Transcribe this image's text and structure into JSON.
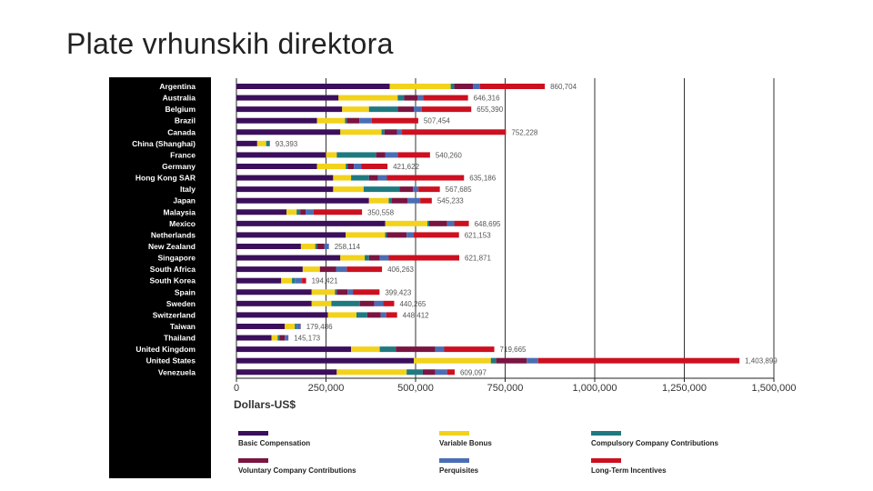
{
  "slide": {
    "title": "Plate vrhunskih direktora"
  },
  "chart_data": {
    "type": "bar",
    "stacked": true,
    "orientation": "horizontal",
    "title": "",
    "xlabel": "Dollars-US$",
    "ylabel": "",
    "xlim": [
      0,
      1500000
    ],
    "xticks": [
      0,
      250000,
      500000,
      750000,
      1000000,
      1250000,
      1500000
    ],
    "xtick_labels": [
      "0",
      "250,000",
      "500,000",
      "750,000",
      "1,000,000",
      "1,250,000",
      "1,500,000"
    ],
    "grid": true,
    "legend_position": "bottom",
    "categories": [
      "Argentina",
      "Australia",
      "Belgium",
      "Brazil",
      "Canada",
      "China (Shanghai)",
      "France",
      "Germany",
      "Hong Kong SAR",
      "Italy",
      "Japan",
      "Malaysia",
      "Mexico",
      "Netherlands",
      "New Zealand",
      "Singapore",
      "South Africa",
      "South Korea",
      "Spain",
      "Sweden",
      "Switzerland",
      "Taiwan",
      "Thailand",
      "United Kingdom",
      "United States",
      "Venezuela"
    ],
    "totals": [
      860704,
      646316,
      655390,
      507454,
      752228,
      93393,
      540260,
      421622,
      635186,
      567685,
      545233,
      350558,
      648695,
      621153,
      258114,
      621871,
      406263,
      194421,
      399423,
      440265,
      448412,
      179486,
      145173,
      719665,
      1403899,
      609097
    ],
    "total_labels": [
      "860,704",
      "646,316",
      "655,390",
      "507,454",
      "752,228",
      "93,393",
      "540,260",
      "421,622",
      "635,186",
      "567,685",
      "545,233",
      "350,558",
      "648,695",
      "621,153",
      "258,114",
      "621,871",
      "406,263",
      "194,421",
      "399,423",
      "440,265",
      "448,412",
      "179,486",
      "145,173",
      "719,665",
      "1,403,899",
      "609,097"
    ],
    "series": [
      {
        "name": "Basic Compensation",
        "color": "#3b0f5c",
        "values": [
          428000,
          285000,
          295000,
          225000,
          290000,
          58000,
          250000,
          225000,
          270000,
          270000,
          370000,
          140000,
          415000,
          305000,
          180000,
          290000,
          185000,
          125000,
          210000,
          210000,
          255000,
          135000,
          98000,
          320000,
          495000,
          280000
        ]
      },
      {
        "name": "Variable Bonus",
        "color": "#f2d21b",
        "values": [
          170000,
          165000,
          75000,
          78000,
          115000,
          25000,
          30000,
          80000,
          50000,
          85000,
          55000,
          28000,
          118000,
          110000,
          40000,
          68000,
          48000,
          30000,
          65000,
          55000,
          80000,
          28000,
          17000,
          80000,
          215000,
          195000
        ]
      },
      {
        "name": "Compulsory Company Contributions",
        "color": "#1f7a80",
        "values": [
          10000,
          18000,
          80000,
          5000,
          8000,
          10000,
          110000,
          5000,
          50000,
          100000,
          8000,
          10000,
          5000,
          5000,
          5000,
          12000,
          0,
          8000,
          5000,
          80000,
          30000,
          5000,
          5000,
          45000,
          15000,
          45000
        ]
      },
      {
        "name": "Voluntary Company Contributions",
        "color": "#7a1440",
        "values": [
          52000,
          38000,
          45000,
          35000,
          35000,
          0,
          25000,
          18000,
          25000,
          38000,
          45000,
          15000,
          50000,
          55000,
          20000,
          30000,
          45000,
          0,
          30000,
          40000,
          38000,
          0,
          15000,
          110000,
          85000,
          35000
        ]
      },
      {
        "name": "Perquisites",
        "color": "#4a6eb5",
        "values": [
          20000,
          15000,
          22000,
          35000,
          14000,
          0,
          35000,
          20000,
          25000,
          15000,
          35000,
          22000,
          20000,
          20000,
          13000,
          25000,
          30000,
          20000,
          15000,
          25000,
          15000,
          11000,
          10000,
          25000,
          32000,
          33000
        ]
      },
      {
        "name": "Long-Term Incentives",
        "color": "#cc1020",
        "values": [
          180704,
          125316,
          138390,
          129454,
          290228,
          393,
          90260,
          73622,
          215186,
          59685,
          32233,
          135558,
          40695,
          126153,
          114,
          196871,
          98263,
          11421,
          74423,
          30265,
          30412,
          486,
          173,
          139665,
          561899,
          21097
        ]
      }
    ]
  }
}
